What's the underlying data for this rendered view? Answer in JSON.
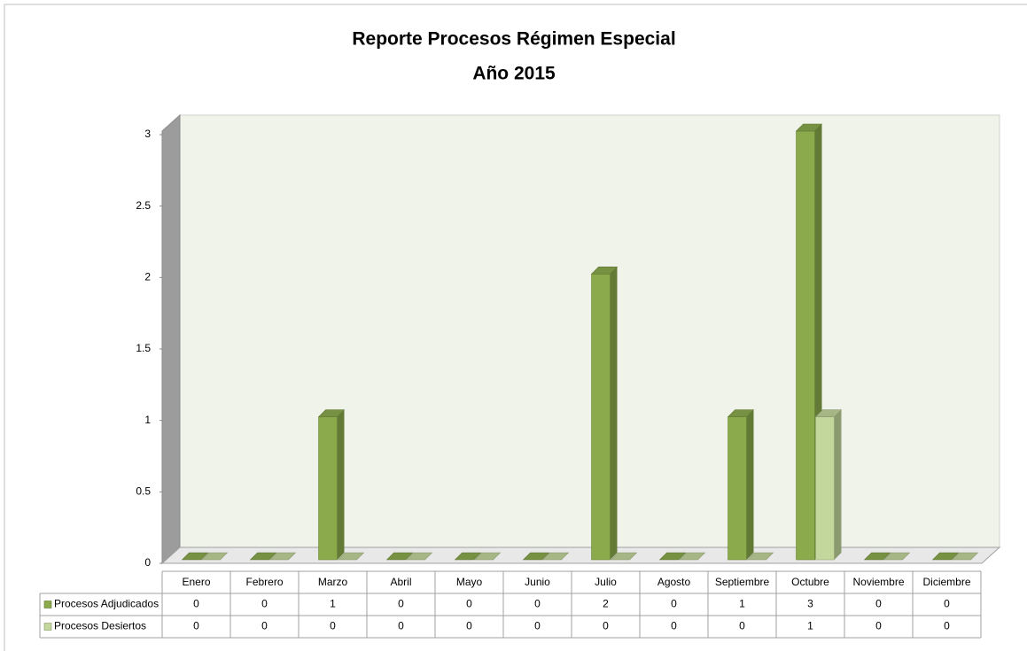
{
  "chart_data": {
    "type": "bar3d",
    "title": "Reporte Procesos Régimen Especial",
    "subtitle": "Año 2015",
    "categories": [
      "Enero",
      "Febrero",
      "Marzo",
      "Abril",
      "Mayo",
      "Junio",
      "Julio",
      "Agosto",
      "Septiembre",
      "Octubre",
      "Noviembre",
      "Diciembre"
    ],
    "series": [
      {
        "name": "Procesos Adjudicados",
        "color": "#8aaa4c",
        "values": [
          0,
          0,
          1,
          0,
          0,
          0,
          2,
          0,
          1,
          3,
          0,
          0
        ]
      },
      {
        "name": "Procesos Desiertos",
        "color": "#c3d69b",
        "values": [
          0,
          0,
          0,
          0,
          0,
          0,
          0,
          0,
          0,
          1,
          0,
          0
        ]
      }
    ],
    "ylim": [
      0,
      3
    ],
    "yticks": [
      0,
      0.5,
      1,
      1.5,
      2,
      2.5,
      3
    ],
    "data_table": true
  }
}
